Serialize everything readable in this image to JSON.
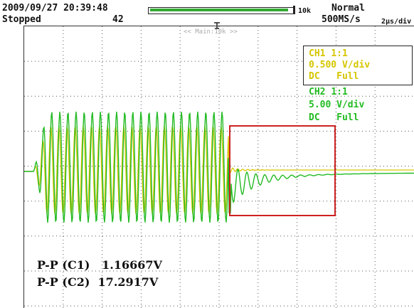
{
  "header": {
    "datetime": "2009/09/27 20:39:48",
    "run_state": "Stopped",
    "trigger_count": "42",
    "record_length": "10k",
    "acq_mode": "Normal",
    "sample_rate": "500MS/s",
    "timebase": "2µs/div",
    "record_fill_fraction": 0.97,
    "trigger_icon": "trigger-position-icon"
  },
  "screen": {
    "zoom_label": "<< Main:10k >>",
    "zoom_box_color": "#cc2222",
    "grid_color": "#555555"
  },
  "channels": {
    "ch1": {
      "name": "CH1",
      "probe": "1:1",
      "scale": "0.500 V/div",
      "coupling": "DC",
      "bandwidth": "Full",
      "color": "#d6c600"
    },
    "ch2": {
      "name": "CH2",
      "probe": "1:1",
      "scale": "5.00 V/div",
      "coupling": "DC",
      "bandwidth": "Full",
      "color": "#22bb22"
    }
  },
  "measurements": [
    {
      "label": "P-P (C1)",
      "value": "1.16667V"
    },
    {
      "label": "P-P (C2)",
      "value": "17.2917V"
    }
  ]
}
